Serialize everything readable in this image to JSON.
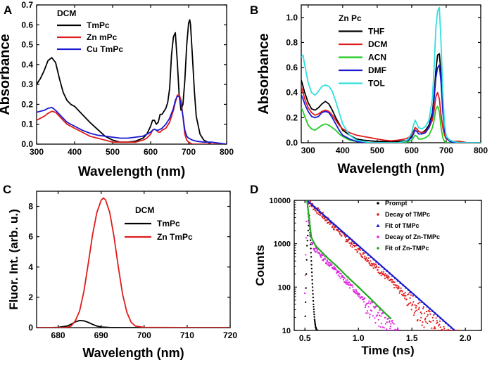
{
  "panels": {
    "A": {
      "label": "A"
    },
    "B": {
      "label": "B"
    },
    "C": {
      "label": "C"
    },
    "D": {
      "label": "D"
    }
  },
  "chart_data": [
    {
      "id": "A",
      "type": "line",
      "xlabel": "Wavelength (nm)",
      "ylabel": "Absorbance",
      "xlim": [
        300,
        800
      ],
      "ylim": [
        0.0,
        0.7
      ],
      "xticks": [
        "300",
        "400",
        "500",
        "600",
        "700",
        "800"
      ],
      "yticks": [
        "0.0",
        "0.1",
        "0.2",
        "0.3",
        "0.4",
        "0.5",
        "0.6",
        "0.7"
      ],
      "legend_title": "DCM",
      "legend_position": "top-left",
      "series": [
        {
          "name": "TmPc",
          "color": "#000000",
          "x": [
            300,
            310,
            320,
            330,
            340,
            350,
            360,
            370,
            380,
            390,
            400,
            420,
            440,
            460,
            480,
            500,
            520,
            540,
            560,
            580,
            590,
            600,
            605,
            610,
            615,
            620,
            625,
            630,
            640,
            645,
            650,
            655,
            660,
            665,
            670,
            675,
            680,
            685,
            690,
            695,
            700,
            703,
            705,
            710,
            715,
            720,
            730,
            740,
            750,
            760,
            780,
            800
          ],
          "y": [
            0.3,
            0.33,
            0.37,
            0.42,
            0.435,
            0.41,
            0.33,
            0.26,
            0.22,
            0.2,
            0.19,
            0.15,
            0.11,
            0.075,
            0.04,
            0.02,
            0.01,
            0.01,
            0.015,
            0.03,
            0.05,
            0.09,
            0.12,
            0.12,
            0.1,
            0.11,
            0.15,
            0.15,
            0.18,
            0.21,
            0.28,
            0.45,
            0.54,
            0.56,
            0.42,
            0.25,
            0.17,
            0.2,
            0.32,
            0.5,
            0.61,
            0.625,
            0.6,
            0.44,
            0.27,
            0.14,
            0.05,
            0.02,
            0.01,
            0.0,
            0.0,
            0.0
          ]
        },
        {
          "name": "Zn mPc",
          "color": "#e01b1b",
          "x": [
            300,
            310,
            320,
            330,
            340,
            350,
            360,
            370,
            380,
            400,
            420,
            440,
            460,
            480,
            500,
            520,
            540,
            560,
            580,
            590,
            600,
            605,
            610,
            615,
            620,
            625,
            630,
            640,
            650,
            660,
            665,
            670,
            675,
            680,
            685,
            690,
            695,
            700,
            710,
            720,
            740,
            760,
            800
          ],
          "y": [
            0.12,
            0.13,
            0.14,
            0.155,
            0.165,
            0.16,
            0.14,
            0.12,
            0.1,
            0.08,
            0.06,
            0.04,
            0.03,
            0.02,
            0.01,
            0.01,
            0.01,
            0.01,
            0.02,
            0.03,
            0.05,
            0.07,
            0.075,
            0.07,
            0.06,
            0.06,
            0.07,
            0.08,
            0.11,
            0.17,
            0.21,
            0.245,
            0.25,
            0.22,
            0.14,
            0.05,
            0.02,
            0.01,
            0.0,
            0.0,
            0.0,
            0.0,
            0.0
          ]
        },
        {
          "name": "Cu TmPc",
          "color": "#1a1ad0",
          "x": [
            300,
            310,
            320,
            330,
            340,
            350,
            360,
            370,
            380,
            400,
            420,
            440,
            460,
            480,
            500,
            520,
            540,
            560,
            580,
            590,
            600,
            605,
            610,
            615,
            620,
            625,
            630,
            640,
            650,
            660,
            665,
            670,
            675,
            680,
            685,
            690,
            695,
            700,
            710,
            720,
            740,
            760,
            800
          ],
          "y": [
            0.16,
            0.165,
            0.17,
            0.18,
            0.185,
            0.17,
            0.15,
            0.13,
            0.11,
            0.09,
            0.07,
            0.055,
            0.045,
            0.04,
            0.035,
            0.03,
            0.03,
            0.035,
            0.04,
            0.05,
            0.06,
            0.07,
            0.075,
            0.07,
            0.07,
            0.075,
            0.08,
            0.1,
            0.13,
            0.18,
            0.22,
            0.24,
            0.24,
            0.2,
            0.14,
            0.07,
            0.04,
            0.03,
            0.02,
            0.015,
            0.01,
            0.01,
            0.0
          ]
        }
      ]
    },
    {
      "id": "B",
      "type": "line",
      "xlabel": "Wavelength (nm)",
      "ylabel": "Absorbance",
      "xlim": [
        280,
        800
      ],
      "ylim": [
        0.0,
        1.1
      ],
      "xticks": [
        "300",
        "400",
        "500",
        "600",
        "700",
        "800"
      ],
      "yticks": [
        "0.0",
        "0.2",
        "0.4",
        "0.6",
        "0.8",
        "1.0"
      ],
      "legend_title": "Zn Pc",
      "legend_position": "top-left",
      "series": [
        {
          "name": "THF",
          "color": "#000000",
          "x": [
            280,
            285,
            290,
            300,
            310,
            320,
            330,
            340,
            350,
            360,
            370,
            380,
            390,
            400,
            420,
            440,
            460,
            480,
            500,
            520,
            540,
            560,
            580,
            590,
            600,
            605,
            610,
            615,
            620,
            630,
            640,
            650,
            660,
            665,
            670,
            675,
            680,
            685,
            690,
            695,
            700,
            710,
            720,
            740,
            760,
            780,
            800
          ],
          "y": [
            0.5,
            0.45,
            0.4,
            0.32,
            0.27,
            0.26,
            0.28,
            0.31,
            0.33,
            0.31,
            0.26,
            0.2,
            0.15,
            0.1,
            0.06,
            0.03,
            0.02,
            0.015,
            0.01,
            0.01,
            0.01,
            0.01,
            0.015,
            0.02,
            0.05,
            0.09,
            0.12,
            0.11,
            0.09,
            0.08,
            0.1,
            0.14,
            0.24,
            0.38,
            0.58,
            0.7,
            0.71,
            0.55,
            0.3,
            0.12,
            0.05,
            0.02,
            0.01,
            0.01,
            0.0,
            0.0,
            0.0
          ]
        },
        {
          "name": "DCM",
          "color": "#e01b1b",
          "x": [
            280,
            285,
            290,
            300,
            310,
            320,
            330,
            340,
            350,
            360,
            370,
            380,
            390,
            400,
            420,
            440,
            460,
            480,
            500,
            520,
            540,
            560,
            580,
            590,
            600,
            605,
            610,
            615,
            620,
            630,
            640,
            650,
            660,
            665,
            670,
            675,
            680,
            685,
            690,
            695,
            700,
            710,
            720,
            740,
            760,
            780,
            800
          ],
          "y": [
            0.45,
            0.4,
            0.35,
            0.28,
            0.24,
            0.22,
            0.23,
            0.25,
            0.26,
            0.25,
            0.22,
            0.18,
            0.14,
            0.11,
            0.08,
            0.06,
            0.05,
            0.04,
            0.03,
            0.02,
            0.015,
            0.02,
            0.03,
            0.04,
            0.06,
            0.08,
            0.12,
            0.11,
            0.09,
            0.08,
            0.09,
            0.12,
            0.18,
            0.26,
            0.37,
            0.4,
            0.35,
            0.22,
            0.12,
            0.06,
            0.03,
            0.02,
            0.01,
            0.01,
            0.0,
            0.0,
            0.0
          ]
        },
        {
          "name": "ACN",
          "color": "#22cc22",
          "x": [
            280,
            285,
            290,
            300,
            310,
            320,
            330,
            340,
            350,
            360,
            370,
            380,
            390,
            400,
            420,
            440,
            460,
            480,
            500,
            520,
            540,
            560,
            580,
            590,
            600,
            605,
            610,
            615,
            620,
            630,
            640,
            650,
            660,
            665,
            670,
            675,
            680,
            685,
            690,
            695,
            700,
            710,
            720,
            740,
            760,
            780,
            800
          ],
          "y": [
            0.28,
            0.25,
            0.21,
            0.14,
            0.11,
            0.1,
            0.12,
            0.14,
            0.15,
            0.14,
            0.12,
            0.1,
            0.07,
            0.05,
            0.02,
            0.01,
            0.0,
            0.0,
            0.0,
            0.0,
            0.0,
            0.0,
            0.0,
            0.01,
            0.02,
            0.04,
            0.06,
            0.05,
            0.03,
            0.03,
            0.04,
            0.06,
            0.12,
            0.18,
            0.27,
            0.29,
            0.25,
            0.12,
            0.04,
            0.01,
            0.0,
            0.0,
            0.0,
            0.0,
            0.0,
            0.0,
            0.0
          ]
        },
        {
          "name": "DMF",
          "color": "#1a1ad0",
          "x": [
            280,
            285,
            290,
            300,
            310,
            320,
            330,
            340,
            350,
            360,
            370,
            380,
            390,
            400,
            420,
            440,
            460,
            480,
            500,
            520,
            540,
            560,
            580,
            590,
            600,
            605,
            610,
            615,
            620,
            630,
            640,
            650,
            660,
            665,
            670,
            675,
            680,
            685,
            690,
            695,
            700,
            710,
            720,
            740,
            760,
            780,
            800
          ],
          "y": [
            0.38,
            0.35,
            0.31,
            0.25,
            0.21,
            0.2,
            0.21,
            0.24,
            0.25,
            0.24,
            0.2,
            0.15,
            0.1,
            0.06,
            0.03,
            0.01,
            0.0,
            0.0,
            0.0,
            0.0,
            0.0,
            0.0,
            0.01,
            0.02,
            0.04,
            0.07,
            0.1,
            0.09,
            0.07,
            0.07,
            0.08,
            0.12,
            0.22,
            0.35,
            0.52,
            0.6,
            0.62,
            0.48,
            0.25,
            0.1,
            0.04,
            0.01,
            0.0,
            0.0,
            0.0,
            0.0,
            0.0
          ]
        },
        {
          "name": "TOL",
          "color": "#2fe0e0",
          "x": [
            280,
            285,
            290,
            300,
            310,
            320,
            330,
            340,
            350,
            360,
            370,
            380,
            390,
            400,
            420,
            440,
            460,
            480,
            500,
            520,
            540,
            560,
            580,
            590,
            600,
            605,
            610,
            615,
            620,
            630,
            640,
            650,
            660,
            665,
            670,
            675,
            680,
            685,
            690,
            695,
            700,
            710,
            720,
            740,
            760,
            780,
            800
          ],
          "y": [
            0.68,
            0.7,
            0.62,
            0.48,
            0.4,
            0.38,
            0.41,
            0.45,
            0.46,
            0.45,
            0.41,
            0.33,
            0.24,
            0.15,
            0.06,
            0.02,
            0.01,
            0.0,
            0.0,
            0.0,
            0.0,
            0.0,
            0.01,
            0.03,
            0.08,
            0.14,
            0.18,
            0.15,
            0.12,
            0.11,
            0.13,
            0.18,
            0.35,
            0.6,
            0.92,
            1.05,
            1.08,
            0.8,
            0.4,
            0.15,
            0.05,
            0.02,
            0.01,
            0.0,
            0.0,
            0.0,
            0.0
          ]
        }
      ]
    },
    {
      "id": "C",
      "type": "line",
      "xlabel": "Wavelength (nm)",
      "ylabel": "Fluor. Int. (arb. u.)",
      "xlim": [
        675,
        720
      ],
      "ylim": [
        0,
        9
      ],
      "xticks": [
        "680",
        "690",
        "700",
        "710",
        "720"
      ],
      "yticks": [
        "0",
        "2",
        "4",
        "6",
        "8"
      ],
      "legend_title": "DCM",
      "legend_position": "top-right",
      "series": [
        {
          "name": "TmPc",
          "color": "#000000",
          "x": [
            675,
            678,
            680,
            682,
            683,
            684,
            685,
            686,
            687,
            688,
            689,
            690,
            692,
            695,
            700,
            710,
            720
          ],
          "y": [
            0.0,
            0.0,
            0.02,
            0.1,
            0.22,
            0.38,
            0.47,
            0.45,
            0.35,
            0.22,
            0.1,
            0.04,
            0.01,
            0.0,
            0.0,
            0.0,
            0.0
          ]
        },
        {
          "name": "Zn TmPc",
          "color": "#e01b1b",
          "x": [
            675,
            680,
            682,
            683,
            684,
            685,
            686,
            687,
            688,
            689,
            690,
            690.5,
            691,
            692,
            693,
            694,
            695,
            696,
            697,
            698,
            700,
            710,
            720
          ],
          "y": [
            0.0,
            0.0,
            0.02,
            0.1,
            0.45,
            1.1,
            2.4,
            4.2,
            6.1,
            7.6,
            8.4,
            8.55,
            8.45,
            7.6,
            6.0,
            4.0,
            2.2,
            1.0,
            0.35,
            0.1,
            0.02,
            0.0,
            0.0
          ]
        }
      ]
    },
    {
      "id": "D",
      "type": "scatter",
      "yscale": "log",
      "xlabel": "Time (ns)",
      "ylabel": "Counts",
      "xlim": [
        0.4,
        2.15
      ],
      "ylim": [
        10,
        10000
      ],
      "xticks": [
        "0.5",
        "1.0",
        "1.5",
        "2.0"
      ],
      "yticks": [
        "10",
        "100",
        "1000",
        "10000"
      ],
      "legend_position": "top-right",
      "series": [
        {
          "name": "Prompt",
          "color": "#000000",
          "marker": "dot",
          "x": [
            0.5,
            0.52,
            0.54,
            0.55,
            0.56,
            0.57,
            0.58,
            0.59,
            0.6,
            0.61,
            0.62
          ],
          "y": [
            10,
            900,
            4500,
            1500,
            400,
            120,
            40,
            18,
            12,
            10,
            10
          ]
        },
        {
          "name": "Decay of TMPc",
          "color": "#e01b1b",
          "marker": "dot",
          "tau_ns": 0.182,
          "x_start": 0.52,
          "x_end": 1.95,
          "peak": 10000,
          "floor": 10
        },
        {
          "name": "Fit of TMPc",
          "color": "#1a1ad0",
          "marker": "triangle",
          "x": [
            0.52,
            1.9
          ],
          "y": [
            10000,
            10
          ]
        },
        {
          "name": "Decay of Zn-TMPc",
          "color": "#e020e0",
          "marker": "dot",
          "fast_tau_ns": 0.012,
          "slow_amp": 1150,
          "slow_tau_ns": 0.172,
          "x_start": 0.5,
          "x_end": 1.38
        },
        {
          "name": "Fit of Zn-TMPc",
          "color": "#22aa22",
          "marker": "dot",
          "x": [
            0.52,
            0.56,
            0.6,
            0.7,
            0.8,
            0.9,
            1.0,
            1.1,
            1.2,
            1.3
          ],
          "y": [
            10000,
            1400,
            900,
            500,
            300,
            170,
            100,
            58,
            33,
            19
          ]
        }
      ]
    }
  ]
}
